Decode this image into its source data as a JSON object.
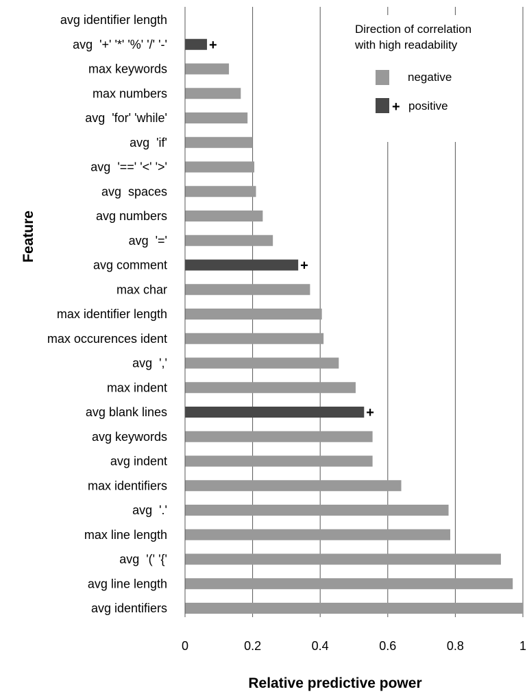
{
  "chart_data": {
    "type": "bar",
    "orientation": "horizontal",
    "title": "",
    "xlabel": "Relative predictive power",
    "ylabel": "Feature",
    "xlim": [
      0,
      1
    ],
    "xticks": [
      0,
      0.2,
      0.4,
      0.6,
      0.8,
      1
    ],
    "xtick_labels": [
      "0",
      "0.2",
      "0.4",
      "0.6",
      "0.8",
      "1"
    ],
    "grid": "vertical",
    "legend": {
      "title_line1": "Direction of correlation",
      "title_line2": "with high readability",
      "placement": "top-right",
      "entries": [
        {
          "label": "negative",
          "color": "#999999",
          "marker": ""
        },
        {
          "label": "positive",
          "color": "#474747",
          "marker": "+"
        }
      ]
    },
    "plus_marker": "+",
    "categories": [
      "avg identifier length",
      "avg  '+' '*' '%' '/' '-'",
      "max keywords",
      "max numbers",
      "avg  'for' 'while'",
      "avg  'if'",
      "avg  '==' '<' '>'",
      "avg  spaces",
      "avg numbers",
      "avg  '='",
      "avg comment",
      "max char",
      "max identifier length",
      "max occurences ident",
      "avg  ','",
      "max indent",
      "avg blank lines",
      "avg keywords",
      "avg indent",
      "max identifiers",
      "avg  '.'",
      "max line length",
      "avg  '(' '{'",
      "avg line length",
      "avg identifiers"
    ],
    "values": [
      0,
      0.065,
      0.13,
      0.165,
      0.185,
      0.2,
      0.205,
      0.21,
      0.23,
      0.26,
      0.335,
      0.37,
      0.405,
      0.41,
      0.455,
      0.505,
      0.53,
      0.555,
      0.555,
      0.64,
      0.78,
      0.785,
      0.935,
      0.97,
      1.0
    ],
    "direction": [
      "negative",
      "positive",
      "negative",
      "negative",
      "negative",
      "negative",
      "negative",
      "negative",
      "negative",
      "negative",
      "positive",
      "negative",
      "negative",
      "negative",
      "negative",
      "negative",
      "positive",
      "negative",
      "negative",
      "negative",
      "negative",
      "negative",
      "negative",
      "negative",
      "negative"
    ],
    "colors": {
      "negative": "#999999",
      "positive": "#474747",
      "grid": "#555555",
      "axis": "#555555"
    }
  }
}
